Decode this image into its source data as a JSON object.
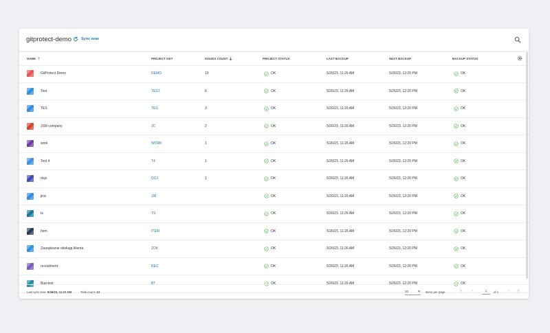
{
  "app": {
    "title": "gitprotect-demo",
    "sync_label": "Sync now"
  },
  "columns": {
    "name": "NAME",
    "project_key": "PROJECT KEY",
    "issues_count": "ISSUES COUNT",
    "project_status": "PROJECT STATUS",
    "last_backup": "LAST BACKUP",
    "next_backup": "NEXT BACKUP",
    "backup_status": "BACKUP STATUS"
  },
  "rows": [
    {
      "name": "GitProtect Demo",
      "key": "DEMO",
      "issues": "10",
      "project_status": "OK",
      "last_backup": "5/26/23, 11:26 AM",
      "next_backup": "5/26/23, 12:20 PM",
      "backup_status": "OK",
      "icon": "demo-project-icon",
      "icon_color": "#e8554e"
    },
    {
      "name": "Test",
      "key": "TEST",
      "issues": "6",
      "project_status": "OK",
      "last_backup": "5/26/23, 11:26 AM",
      "next_backup": "5/26/23, 12:20 PM",
      "backup_status": "OK",
      "icon": "test-project-icon",
      "icon_color": "#2f8fe0"
    },
    {
      "name": "TES",
      "key": "TES",
      "issues": "3",
      "project_status": "OK",
      "last_backup": "5/26/23, 11:26 AM",
      "next_backup": "5/26/23, 12:20 PM",
      "backup_status": "OK",
      "icon": "tes-project-icon",
      "icon_color": "#2f8fe0"
    },
    {
      "name": "JSM company",
      "key": "JC",
      "issues": "2",
      "project_status": "OK",
      "last_backup": "5/26/23, 11:26 AM",
      "next_backup": "5/26/23, 12:20 PM",
      "backup_status": "OK",
      "icon": "jsm-project-icon",
      "icon_color": "#d2452b"
    },
    {
      "name": "work",
      "key": "WORK",
      "issues": "1",
      "project_status": "OK",
      "last_backup": "5/26/23, 11:26 AM",
      "next_backup": "5/26/23, 12:20 PM",
      "backup_status": "OK",
      "icon": "work-project-icon",
      "icon_color": "#6a3fa0"
    },
    {
      "name": "Test 4",
      "key": "T4",
      "issues": "1",
      "project_status": "OK",
      "last_backup": "5/26/23, 11:26 AM",
      "next_backup": "5/26/23, 12:20 PM",
      "backup_status": "OK",
      "icon": "cloud-project-icon",
      "icon_color": "#3d8fe0"
    },
    {
      "name": "dojo",
      "key": "DOJ",
      "issues": "1",
      "project_status": "OK",
      "last_backup": "5/26/23, 11:26 AM",
      "next_backup": "5/26/23, 12:20 PM",
      "backup_status": "OK",
      "icon": "dojo-project-icon",
      "icon_color": "#3a4fb0"
    },
    {
      "name": "jirst",
      "key": "JIR",
      "issues": "",
      "project_status": "OK",
      "last_backup": "5/26/23, 11:26 AM",
      "next_backup": "5/26/23, 12:20 PM",
      "backup_status": "OK",
      "icon": "jirst-project-icon",
      "icon_color": "#2f8fe0"
    },
    {
      "name": "ts",
      "key": "TS",
      "issues": "",
      "project_status": "OK",
      "last_backup": "5/26/23, 11:26 AM",
      "next_backup": "5/26/23, 12:20 PM",
      "backup_status": "OK",
      "icon": "ts-project-icon",
      "icon_color": "#1b7a9a"
    },
    {
      "name": "Item",
      "key": "ITEM",
      "issues": "",
      "project_status": "OK",
      "last_backup": "5/26/23, 11:26 AM",
      "next_backup": "5/26/23, 12:20 PM",
      "backup_status": "OK",
      "icon": "item-project-icon",
      "icon_color": "#2b3a5c"
    },
    {
      "name": "Zarządzanie obsługą klienta",
      "key": "ZOK",
      "issues": "",
      "project_status": "OK",
      "last_backup": "5/26/23, 11:26 AM",
      "next_backup": "5/26/23, 12:20 PM",
      "backup_status": "OK",
      "icon": "zok-project-icon",
      "icon_color": "#2f8fe0"
    },
    {
      "name": "recruitment",
      "key": "REC",
      "issues": "",
      "project_status": "OK",
      "last_backup": "5/26/23, 11:26 AM",
      "next_backup": "5/26/23, 12:20 PM",
      "backup_status": "OK",
      "icon": "recruitment-project-icon",
      "icon_color": "#7a5cc0"
    },
    {
      "name": "Bug-test",
      "key": "BT",
      "issues": "",
      "project_status": "OK",
      "last_backup": "5/26/23, 11:26 AM",
      "next_backup": "5/26/23, 12:20 PM",
      "backup_status": "OK",
      "icon": "bug-project-icon",
      "icon_color": "#1f8fa0"
    }
  ],
  "footer": {
    "last_sync_label": "Last sync time:",
    "last_sync_value": "5/26/23, 11:22 AM",
    "total_label": "Total count:",
    "total_value": "13",
    "per_page_value": "20",
    "per_page_label": "items per page",
    "page_value": "1",
    "page_of": "of 1"
  },
  "colors": {
    "accent": "#1e73be",
    "ok": "#5cb85c"
  }
}
